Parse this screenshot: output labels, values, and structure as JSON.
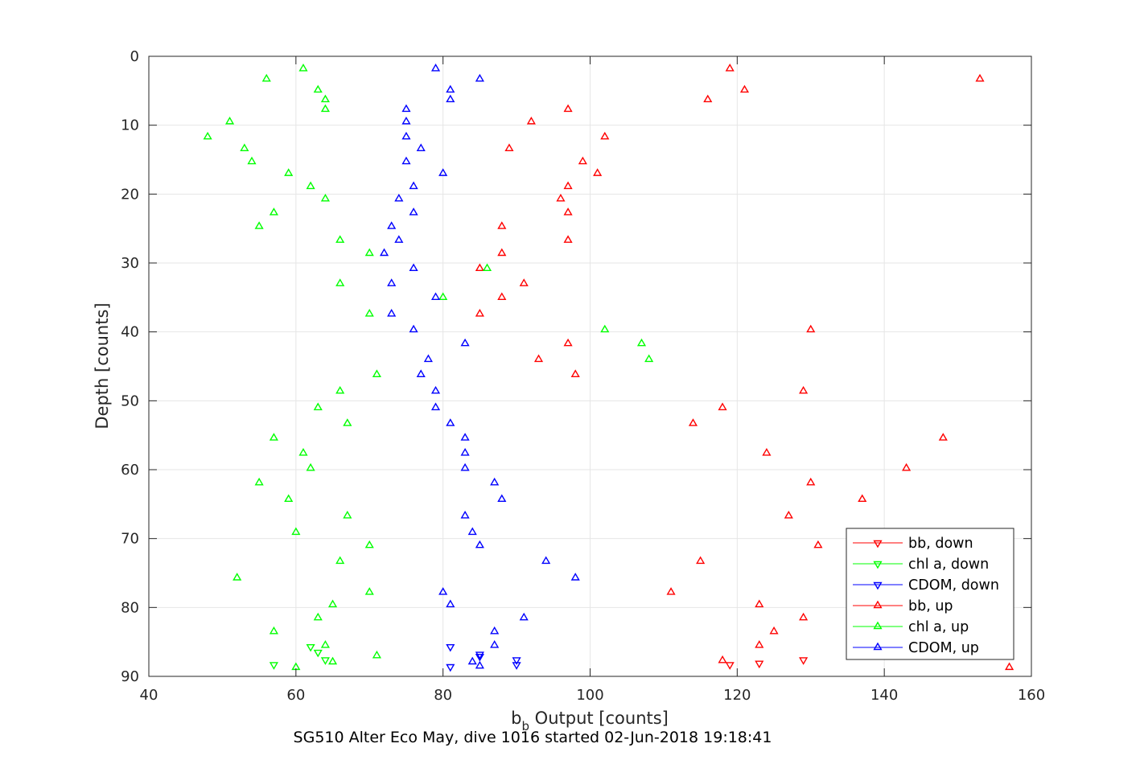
{
  "chart_data": {
    "type": "scatter",
    "xlabel": "b_b Output [counts]",
    "xlabel_main": "b",
    "xlabel_sub": "b",
    "xlabel_rest": " Output [counts]",
    "ylabel": "Depth [counts]",
    "caption": "SG510 Alter Eco May, dive 1016 started 02-Jun-2018 19:18:41",
    "xlim": [
      40,
      160
    ],
    "ylim": [
      0,
      90
    ],
    "y_reversed": true,
    "grid": true,
    "legend_position": "bottom-right",
    "xticks": [
      "40",
      "60",
      "80",
      "100",
      "120",
      "140",
      "160"
    ],
    "yticks": [
      "0",
      "10",
      "20",
      "30",
      "40",
      "50",
      "60",
      "70",
      "80",
      "90"
    ],
    "series": [
      {
        "name": "bb, down",
        "color": "#ff0000",
        "marker": "triangle-down",
        "points": [
          [
            119,
            88.3
          ],
          [
            123,
            88.1
          ],
          [
            129,
            87.6
          ]
        ]
      },
      {
        "name": "chl a, down",
        "color": "#00ff00",
        "marker": "triangle-down",
        "points": [
          [
            57,
            88.3
          ],
          [
            62,
            85.7
          ],
          [
            63,
            86.5
          ],
          [
            64,
            87.6
          ]
        ]
      },
      {
        "name": "CDOM, down",
        "color": "#0000ff",
        "marker": "triangle-down",
        "points": [
          [
            81,
            88.6
          ],
          [
            81,
            85.7
          ],
          [
            85,
            86.8
          ],
          [
            85,
            87.1
          ],
          [
            90,
            87.6
          ],
          [
            90,
            88.3
          ]
        ]
      },
      {
        "name": "bb, up",
        "color": "#ff0000",
        "marker": "triangle-up",
        "points": [
          [
            119,
            1.8
          ],
          [
            153,
            3.3
          ],
          [
            121,
            4.9
          ],
          [
            116,
            6.3
          ],
          [
            97,
            7.7
          ],
          [
            92,
            9.5
          ],
          [
            102,
            11.7
          ],
          [
            89,
            13.4
          ],
          [
            99,
            15.3
          ],
          [
            101,
            17.0
          ],
          [
            97,
            18.9
          ],
          [
            96,
            20.7
          ],
          [
            97,
            22.7
          ],
          [
            88,
            24.7
          ],
          [
            97,
            26.7
          ],
          [
            88,
            28.6
          ],
          [
            85,
            30.8
          ],
          [
            91,
            33.0
          ],
          [
            88,
            35.0
          ],
          [
            85,
            37.4
          ],
          [
            130,
            39.7
          ],
          [
            97,
            41.7
          ],
          [
            93,
            44.0
          ],
          [
            98,
            46.2
          ],
          [
            129,
            48.6
          ],
          [
            118,
            51.0
          ],
          [
            114,
            53.3
          ],
          [
            148,
            55.4
          ],
          [
            124,
            57.6
          ],
          [
            143,
            59.8
          ],
          [
            130,
            61.9
          ],
          [
            137,
            64.3
          ],
          [
            127,
            66.7
          ],
          [
            131,
            71.0
          ],
          [
            115,
            73.3
          ],
          [
            111,
            77.8
          ],
          [
            123,
            79.6
          ],
          [
            129,
            81.5
          ],
          [
            125,
            83.5
          ],
          [
            123,
            85.5
          ],
          [
            118,
            87.7
          ],
          [
            157,
            88.7
          ]
        ]
      },
      {
        "name": "chl a, up",
        "color": "#00ff00",
        "marker": "triangle-up",
        "points": [
          [
            61,
            1.8
          ],
          [
            56,
            3.3
          ],
          [
            63,
            4.9
          ],
          [
            64,
            6.3
          ],
          [
            64,
            7.7
          ],
          [
            51,
            9.5
          ],
          [
            48,
            11.7
          ],
          [
            53,
            13.4
          ],
          [
            54,
            15.3
          ],
          [
            59,
            17.0
          ],
          [
            62,
            18.9
          ],
          [
            64,
            20.7
          ],
          [
            57,
            22.7
          ],
          [
            55,
            24.7
          ],
          [
            66,
            26.7
          ],
          [
            70,
            28.6
          ],
          [
            86,
            30.8
          ],
          [
            66,
            33.0
          ],
          [
            80,
            35.0
          ],
          [
            70,
            37.4
          ],
          [
            102,
            39.7
          ],
          [
            107,
            41.7
          ],
          [
            108,
            44.0
          ],
          [
            71,
            46.2
          ],
          [
            66,
            48.6
          ],
          [
            63,
            51.0
          ],
          [
            67,
            53.3
          ],
          [
            57,
            55.4
          ],
          [
            61,
            57.6
          ],
          [
            62,
            59.8
          ],
          [
            55,
            61.9
          ],
          [
            59,
            64.3
          ],
          [
            67,
            66.7
          ],
          [
            60,
            69.1
          ],
          [
            70,
            71.0
          ],
          [
            66,
            73.3
          ],
          [
            52,
            75.7
          ],
          [
            70,
            77.8
          ],
          [
            65,
            79.6
          ],
          [
            63,
            81.5
          ],
          [
            57,
            83.5
          ],
          [
            64,
            85.5
          ],
          [
            71,
            87.0
          ],
          [
            65,
            87.9
          ],
          [
            60,
            88.7
          ]
        ]
      },
      {
        "name": "CDOM, up",
        "color": "#0000ff",
        "marker": "triangle-up",
        "points": [
          [
            79,
            1.8
          ],
          [
            85,
            3.3
          ],
          [
            81,
            4.9
          ],
          [
            81,
            6.3
          ],
          [
            75,
            7.7
          ],
          [
            75,
            9.5
          ],
          [
            75,
            11.7
          ],
          [
            77,
            13.4
          ],
          [
            75,
            15.3
          ],
          [
            80,
            17.0
          ],
          [
            76,
            18.9
          ],
          [
            74,
            20.7
          ],
          [
            76,
            22.7
          ],
          [
            73,
            24.7
          ],
          [
            74,
            26.7
          ],
          [
            72,
            28.6
          ],
          [
            76,
            30.8
          ],
          [
            73,
            33.0
          ],
          [
            79,
            35.0
          ],
          [
            73,
            37.4
          ],
          [
            76,
            39.7
          ],
          [
            83,
            41.7
          ],
          [
            78,
            44.0
          ],
          [
            77,
            46.2
          ],
          [
            79,
            48.6
          ],
          [
            79,
            51.0
          ],
          [
            81,
            53.3
          ],
          [
            83,
            55.4
          ],
          [
            83,
            57.6
          ],
          [
            83,
            59.8
          ],
          [
            87,
            61.9
          ],
          [
            88,
            64.3
          ],
          [
            83,
            66.7
          ],
          [
            84,
            69.1
          ],
          [
            85,
            71.0
          ],
          [
            94,
            73.3
          ],
          [
            98,
            75.7
          ],
          [
            80,
            77.8
          ],
          [
            81,
            79.6
          ],
          [
            91,
            81.5
          ],
          [
            87,
            83.5
          ],
          [
            87,
            85.5
          ],
          [
            84,
            87.9
          ],
          [
            85,
            88.5
          ]
        ]
      }
    ]
  }
}
